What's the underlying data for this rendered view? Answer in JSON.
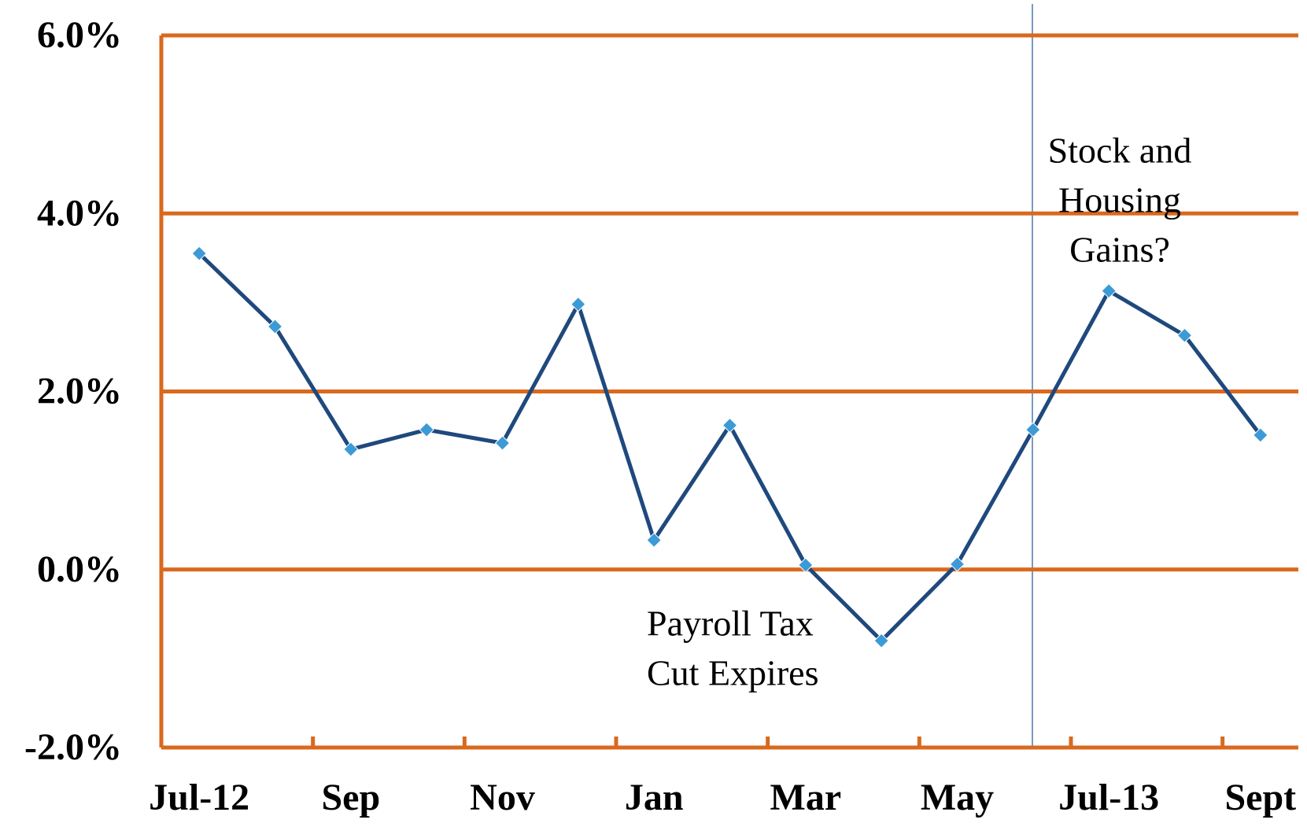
{
  "chart_data": {
    "type": "line",
    "categories": [
      "Jul-12",
      null,
      "Sep",
      null,
      "Nov",
      null,
      "Jan",
      null,
      "Mar",
      null,
      "May",
      null,
      "Jul-13",
      null,
      "Sept"
    ],
    "series": [
      {
        "color": "#1f497d",
        "marker_color": "#3c9ad6",
        "values": [
          3.55,
          2.73,
          1.35,
          1.57,
          1.42,
          2.98,
          0.33,
          1.62,
          0.05,
          -0.8,
          0.06,
          1.57,
          3.13,
          2.63,
          1.51
        ]
      }
    ],
    "ylim": [
      -2,
      6
    ],
    "yticks": [
      {
        "value": -2,
        "label": "-2.0%"
      },
      {
        "value": 0,
        "label": "0.0%"
      },
      {
        "value": 2,
        "label": "2.0%"
      },
      {
        "value": 4,
        "label": "4.0%"
      },
      {
        "value": 6,
        "label": "6.0%"
      }
    ],
    "grid": true,
    "grid_color": "#d9691e",
    "annotations": [
      {
        "lines": [
          "Payroll Tax",
          "Cut Expires"
        ]
      },
      {
        "lines": [
          "Stock and",
          "Housing",
          "Gains?"
        ]
      }
    ]
  }
}
